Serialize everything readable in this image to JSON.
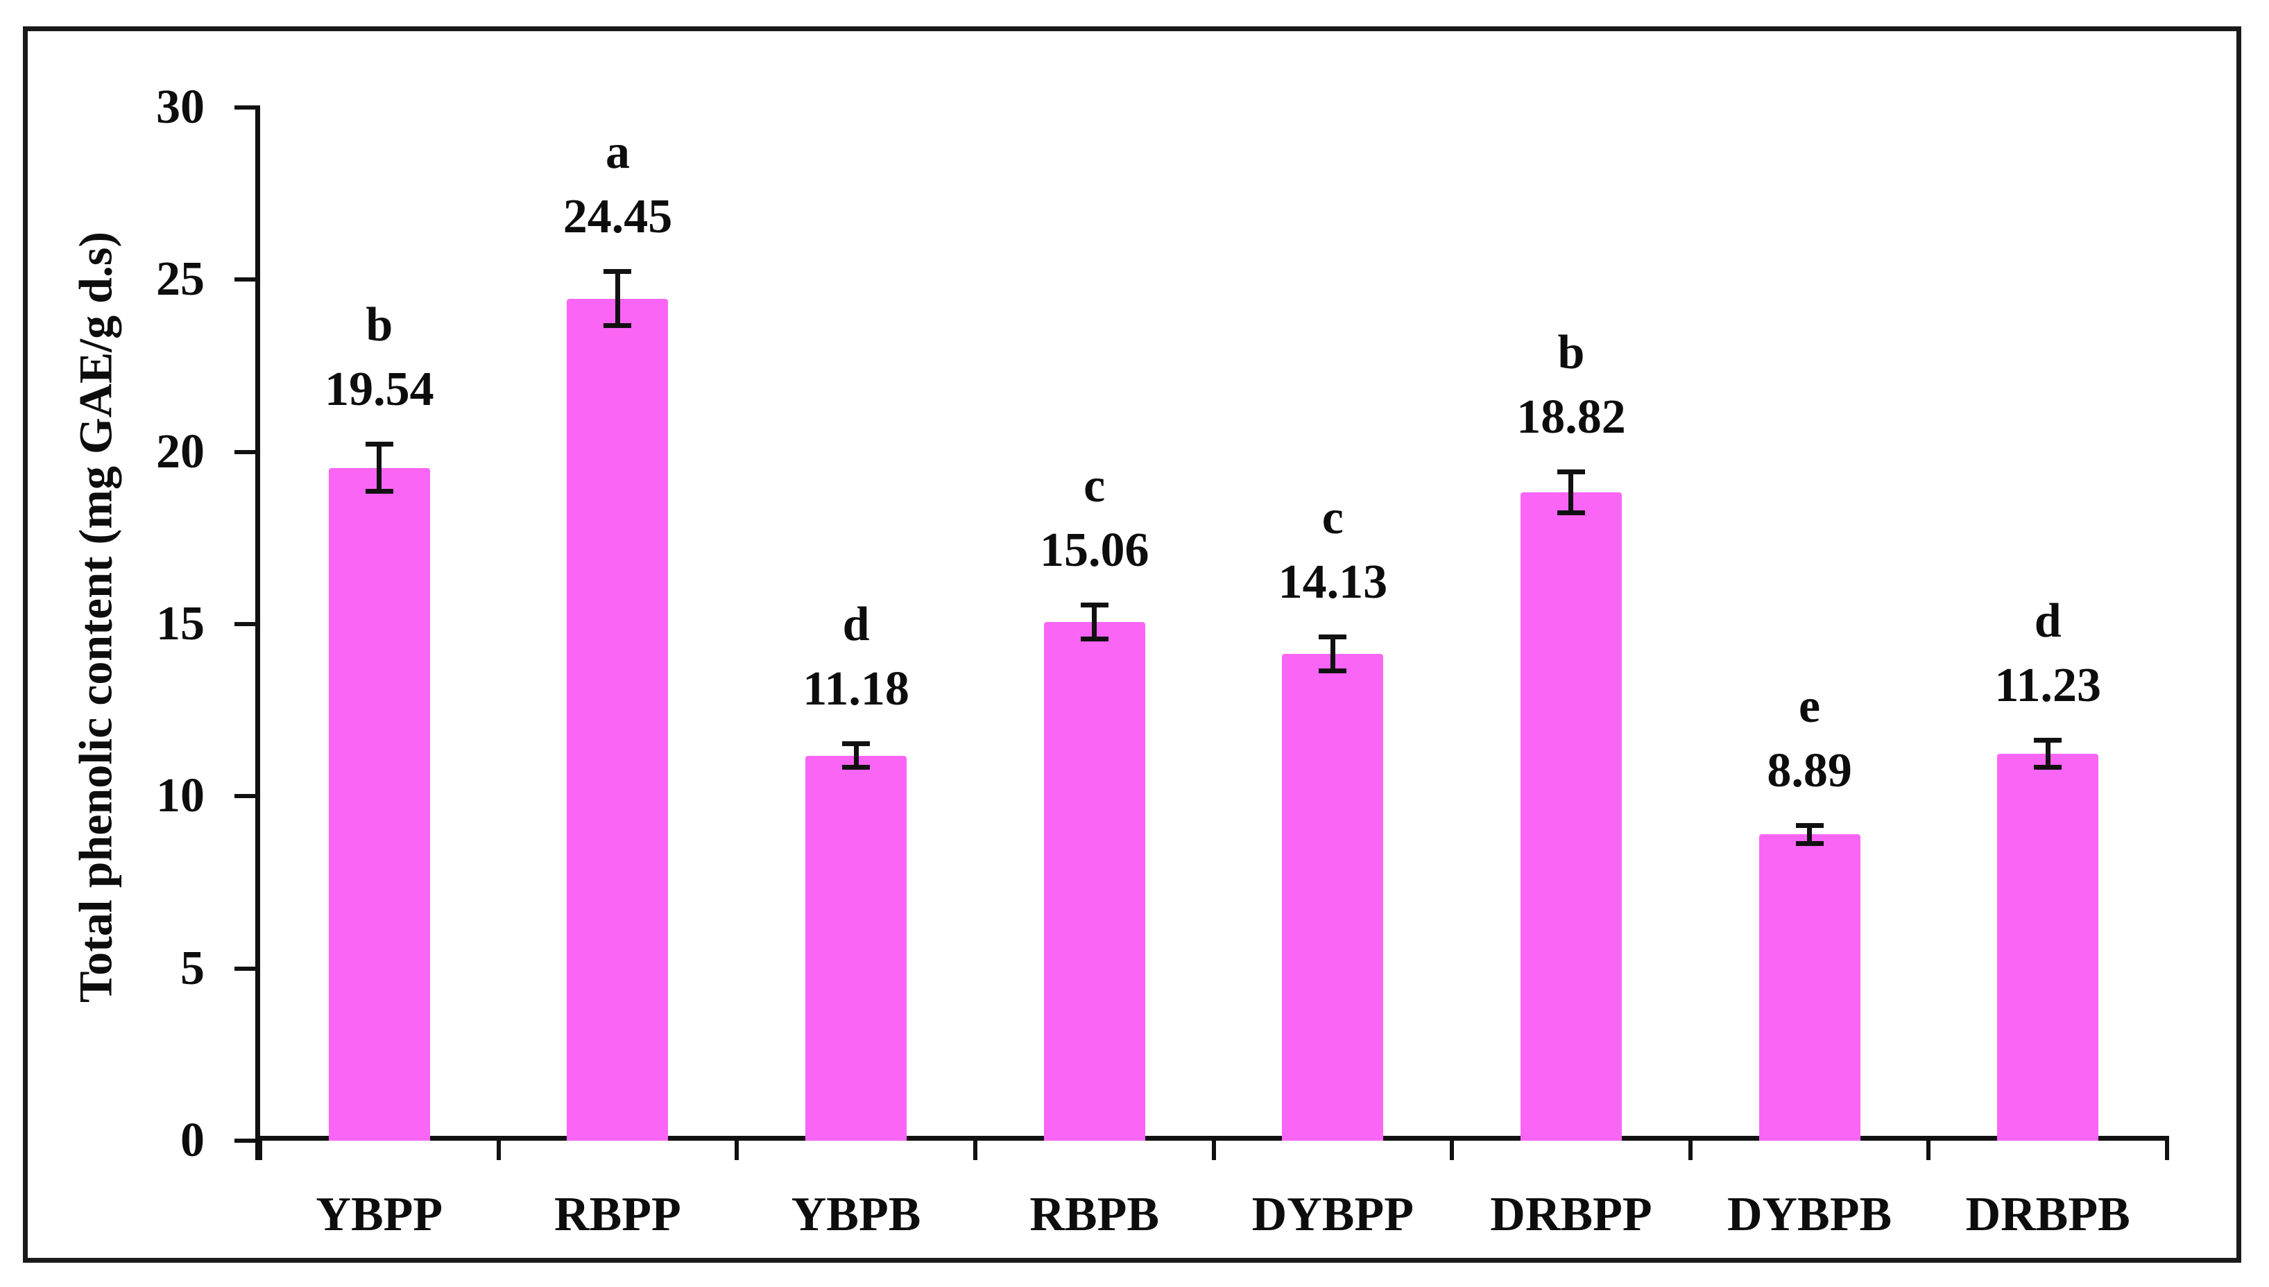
{
  "chart_data": {
    "type": "bar",
    "title": "",
    "xlabel": "",
    "ylabel": "Total phenolic content (mg GAE/g d.s)",
    "ylim": [
      0,
      30
    ],
    "yticks": [
      0,
      5,
      10,
      15,
      20,
      25,
      30
    ],
    "grid": false,
    "legend": null,
    "categories": [
      "YBPP",
      "RBPP",
      "YBPB",
      "RBPB",
      "DYBPP",
      "DRBPP",
      "DYBPB",
      "DRBPB"
    ],
    "values": [
      19.54,
      24.45,
      11.18,
      15.06,
      14.13,
      18.82,
      8.89,
      11.23
    ],
    "value_labels": [
      "19.54",
      "24.45",
      "11.18",
      "15.06",
      "14.13",
      "18.82",
      "8.89",
      "11.23"
    ],
    "significance_letters": [
      "b",
      "a",
      "d",
      "c",
      "c",
      "b",
      "e",
      "d"
    ],
    "error_bars": [
      0.7,
      0.8,
      0.35,
      0.5,
      0.5,
      0.6,
      0.28,
      0.4
    ],
    "bar_color": "#FA65F5",
    "axis_color": "#111111",
    "text_color": "#0d0d0d"
  }
}
